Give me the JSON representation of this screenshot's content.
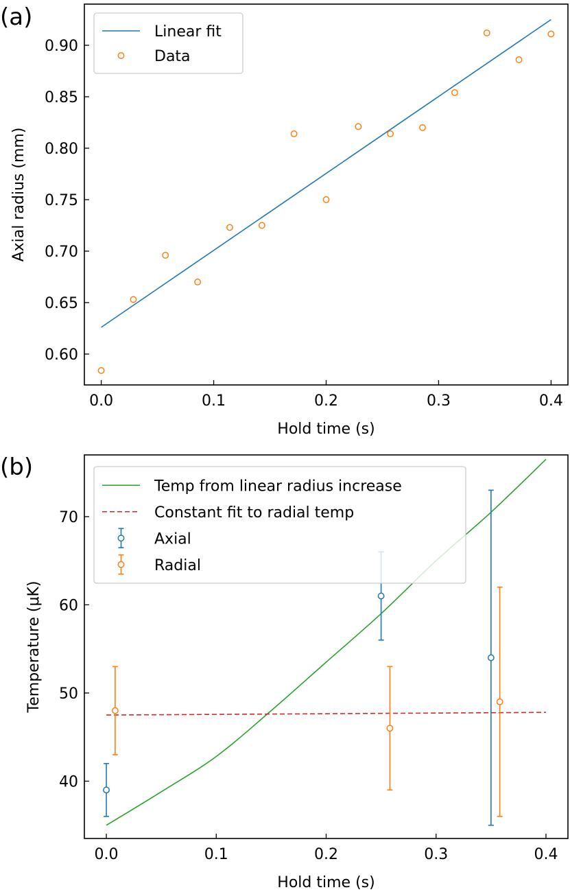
{
  "colors": {
    "blue": "#1f77b4",
    "orange": "#ff7f0e",
    "green": "#2ca02c",
    "red": "#d62728"
  },
  "chart_data": [
    {
      "panel_label": "(a)",
      "type": "scatter",
      "xlabel": "Hold time (s)",
      "ylabel": "Axial radius (mm)",
      "xlim": [
        -0.015,
        0.415
      ],
      "ylim": [
        0.57,
        0.94
      ],
      "xticks": [
        0.0,
        0.1,
        0.2,
        0.3,
        0.4
      ],
      "xtick_labels": [
        "0.0",
        "0.1",
        "0.2",
        "0.3",
        "0.4"
      ],
      "yticks": [
        0.6,
        0.65,
        0.7,
        0.75,
        0.8,
        0.85,
        0.9
      ],
      "ytick_labels": [
        "0.60",
        "0.65",
        "0.70",
        "0.75",
        "0.80",
        "0.85",
        "0.90"
      ],
      "legend_position": "top-left",
      "series": [
        {
          "name": "Linear fit",
          "kind": "line",
          "color_key": "blue",
          "x": [
            0.0,
            0.4
          ],
          "y": [
            0.626,
            0.925
          ]
        },
        {
          "name": "Data",
          "kind": "points",
          "color_key": "orange",
          "x": [
            0.0,
            0.0286,
            0.0571,
            0.0857,
            0.1143,
            0.1429,
            0.1714,
            0.2,
            0.2286,
            0.2571,
            0.2857,
            0.3143,
            0.3429,
            0.3714,
            0.4
          ],
          "y": [
            0.584,
            0.653,
            0.696,
            0.67,
            0.723,
            0.725,
            0.814,
            0.75,
            0.821,
            0.814,
            0.82,
            0.854,
            0.912,
            0.886,
            0.911
          ]
        }
      ]
    },
    {
      "panel_label": "(b)",
      "type": "line",
      "xlabel": "Hold time (s)",
      "ylabel": "Temperature (μK)",
      "xlim": [
        -0.02,
        0.42
      ],
      "ylim": [
        33.5,
        77.0
      ],
      "xticks": [
        0.0,
        0.1,
        0.2,
        0.3,
        0.4
      ],
      "xtick_labels": [
        "0.0",
        "0.1",
        "0.2",
        "0.3",
        "0.4"
      ],
      "yticks": [
        40,
        50,
        60,
        70
      ],
      "ytick_labels": [
        "40",
        "50",
        "60",
        "70"
      ],
      "legend_position": "top-left",
      "series": [
        {
          "name": "Temp from linear radius increase",
          "kind": "curve",
          "color_key": "green",
          "x": [
            0.0,
            0.05,
            0.1,
            0.15,
            0.2,
            0.25,
            0.3,
            0.35,
            0.4
          ],
          "y": [
            35.0,
            38.8,
            42.8,
            48.0,
            53.5,
            59.0,
            65.0,
            70.5,
            76.5
          ]
        },
        {
          "name": "Constant fit to radial temp",
          "kind": "dashed",
          "color_key": "red",
          "x": [
            0.0,
            0.4
          ],
          "y": [
            47.5,
            47.8
          ]
        },
        {
          "name": "Axial",
          "kind": "errorbar",
          "color_key": "blue",
          "x": [
            0.0,
            0.25,
            0.35
          ],
          "y": [
            39.0,
            61.0,
            54.0
          ],
          "yerr_low": [
            36.0,
            56.0,
            35.0
          ],
          "yerr_high": [
            42.0,
            66.0,
            73.0
          ]
        },
        {
          "name": "Radial",
          "kind": "errorbar",
          "color_key": "orange",
          "x": [
            0.008,
            0.258,
            0.358
          ],
          "y": [
            48.0,
            46.0,
            49.0
          ],
          "yerr_low": [
            43.0,
            39.0,
            36.0
          ],
          "yerr_high": [
            53.0,
            53.0,
            62.0
          ]
        }
      ]
    }
  ]
}
